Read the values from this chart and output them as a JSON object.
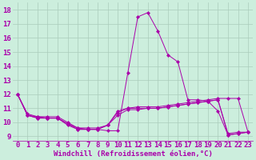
{
  "xlabel": "Windchill (Refroidissement éolien,°C)",
  "background_color": "#cceedd",
  "grid_color": "#aaccbb",
  "line_color": "#aa00aa",
  "xlim": [
    -0.5,
    23.5
  ],
  "ylim": [
    8.7,
    18.5
  ],
  "xticks": [
    0,
    1,
    2,
    3,
    4,
    5,
    6,
    7,
    8,
    9,
    10,
    11,
    12,
    13,
    14,
    15,
    16,
    17,
    18,
    19,
    20,
    21,
    22,
    23
  ],
  "yticks": [
    9,
    10,
    11,
    12,
    13,
    14,
    15,
    16,
    17,
    18
  ],
  "series": [
    [
      12.0,
      10.5,
      10.3,
      10.3,
      10.3,
      9.8,
      9.5,
      9.5,
      9.5,
      9.4,
      9.4,
      13.5,
      17.5,
      17.8,
      16.5,
      14.8,
      14.3,
      11.6,
      11.6,
      11.5,
      10.8,
      9.1,
      9.2,
      9.3
    ],
    [
      12.0,
      10.5,
      10.3,
      10.3,
      10.3,
      9.9,
      9.5,
      9.5,
      9.5,
      9.8,
      10.8,
      11.0,
      11.1,
      11.1,
      11.1,
      11.2,
      11.3,
      11.4,
      11.5,
      11.6,
      11.7,
      11.7,
      11.7,
      9.3
    ],
    [
      12.0,
      10.5,
      10.4,
      10.3,
      10.3,
      9.9,
      9.6,
      9.5,
      9.5,
      9.8,
      10.7,
      11.0,
      11.0,
      11.0,
      11.0,
      11.1,
      11.2,
      11.3,
      11.4,
      11.5,
      11.6,
      9.1,
      9.2,
      9.3
    ],
    [
      12.0,
      10.6,
      10.4,
      10.4,
      10.4,
      10.0,
      9.6,
      9.6,
      9.6,
      9.8,
      10.5,
      10.9,
      10.9,
      11.0,
      11.0,
      11.1,
      11.2,
      11.3,
      11.4,
      11.5,
      11.6,
      9.2,
      9.3,
      9.3
    ]
  ],
  "tick_fontsize": 6.5,
  "xlabel_fontsize": 6.5,
  "linewidth": 0.7,
  "markersize": 2.2
}
